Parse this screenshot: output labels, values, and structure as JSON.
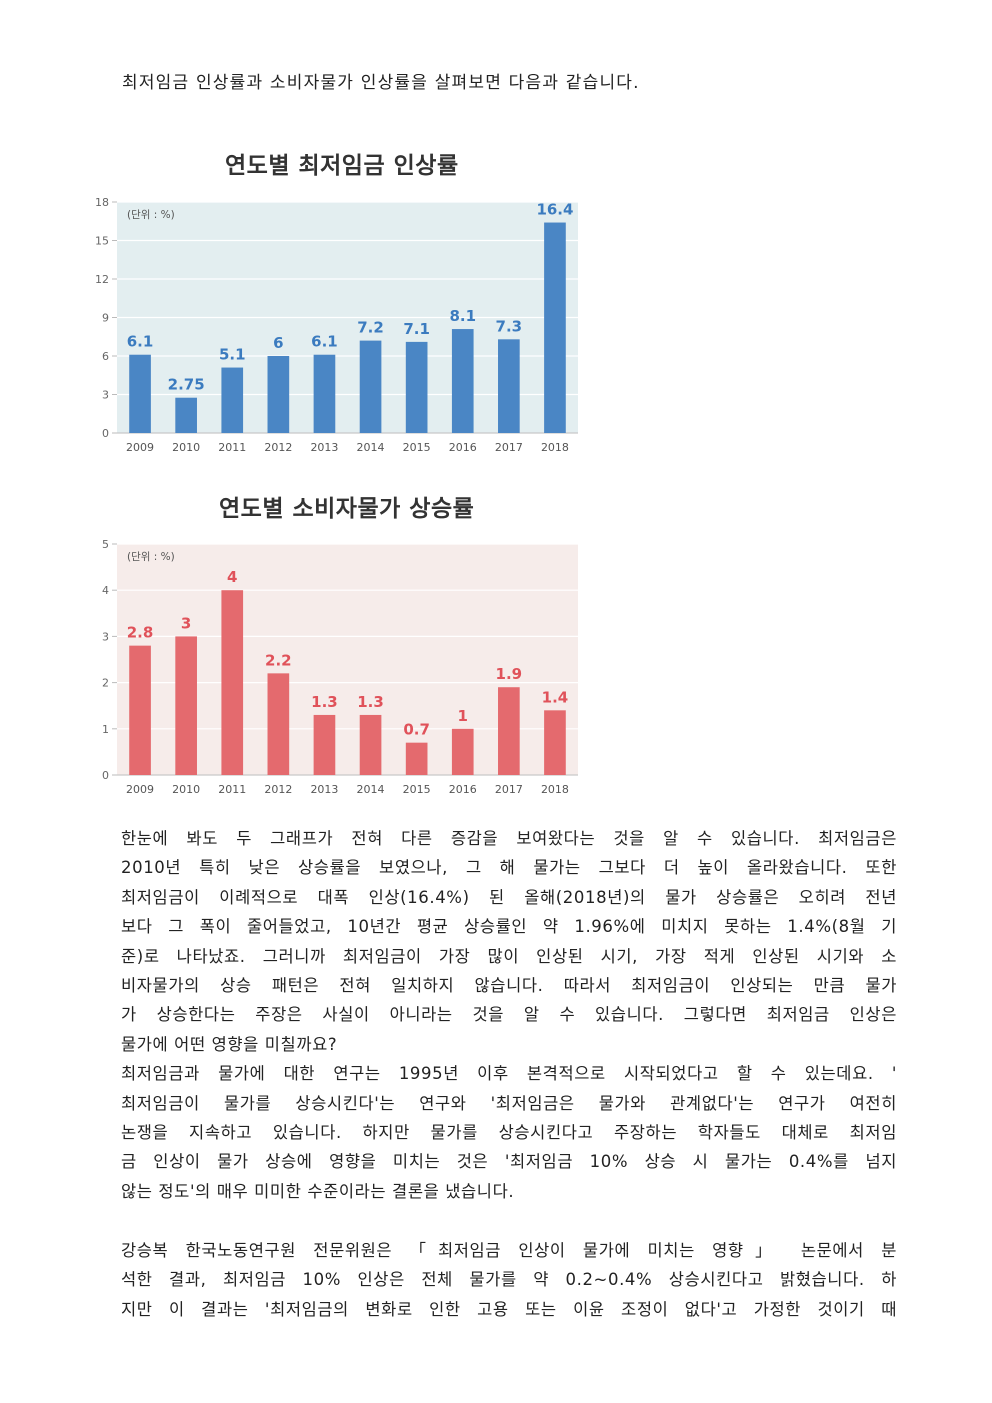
{
  "intro": "최저임금 인상률과 소비자물가 인상률을 살펴보면 다음과 같습니다.",
  "colors": {
    "wage_bar": "#4a86c5",
    "wage_bg": "#e3eef0",
    "wage_label": "#3b7bbf",
    "cpi_bar": "#e46a6e",
    "cpi_bg": "#f6ecea",
    "cpi_label": "#e0525a"
  },
  "chart_data": [
    {
      "type": "bar",
      "title": "연도별 최저임금 인상률",
      "unit_note": "(단위 : %)",
      "categories": [
        "2009",
        "2010",
        "2011",
        "2012",
        "2013",
        "2014",
        "2015",
        "2016",
        "2017",
        "2018"
      ],
      "values": [
        6.1,
        2.75,
        5.1,
        6,
        6.1,
        7.2,
        7.1,
        8.1,
        7.3,
        16.4
      ],
      "value_labels": [
        "6.1",
        "2.75",
        "5.1",
        "6",
        "6.1",
        "7.2",
        "7.1",
        "8.1",
        "7.3",
        "16.4"
      ],
      "yticks": [
        "0",
        "3",
        "6",
        "9",
        "12",
        "15",
        "18"
      ],
      "ylim": [
        0,
        18
      ],
      "grid": true
    },
    {
      "type": "bar",
      "title": "연도별 소비자물가 상승률",
      "unit_note": "(단위 : %)",
      "categories": [
        "2009",
        "2010",
        "2011",
        "2012",
        "2013",
        "2014",
        "2015",
        "2016",
        "2017",
        "2018"
      ],
      "values": [
        2.8,
        3,
        4,
        2.2,
        1.3,
        1.3,
        0.7,
        1,
        1.9,
        1.4
      ],
      "value_labels": [
        "2.8",
        "3",
        "4",
        "2.2",
        "1.3",
        "1.3",
        "0.7",
        "1",
        "1.9",
        "1.4"
      ],
      "yticks": [
        "0",
        "1",
        "2",
        "3",
        "4",
        "5"
      ],
      "ylim": [
        0,
        5
      ],
      "grid": true
    }
  ],
  "paragraph1": [
    "한눈에 봐도 두 그래프가 전혀 다른 증감을 보여왔다는 것을 알 수 있습니다. 최저임금은",
    "2010년 특히 낮은 상승률을 보였으나, 그 해 물가는 그보다 더 높이 올라왔습니다. 또한",
    "최저임금이 이례적으로 대폭 인상(16.4%) 된 올해(2018년)의 물가 상승률은 오히려 전년",
    "보다 그 폭이 줄어들었고, 10년간 평균 상승률인 약 1.96%에 미치지 못하는 1.4%(8월 기",
    "준)로 나타났죠. 그러니까 최저임금이 가장 많이 인상된 시기, 가장 적게 인상된 시기와 소",
    "비자물가의 상승 패턴은 전혀 일치하지 않습니다. 따라서 최저임금이 인상되는 만큼 물가",
    "가 상승한다는 주장은 사실이 아니라는 것을 알 수 있습니다. 그렇다면 최저임금 인상은",
    "물가에 어떤 영향을 미칠까요?",
    "최저임금과 물가에 대한 연구는 1995년 이후 본격적으로 시작되었다고 할 수 있는데요. '",
    "최저임금이 물가를 상승시킨다'는 연구와 '최저임금은 물가와 관계없다'는 연구가 여전히",
    "논쟁을 지속하고 있습니다. 하지만 물가를 상승시킨다고 주장하는 학자들도 대체로 최저임",
    "금 인상이 물가 상승에 영향을 미치는 것은 '최저임금 10% 상승 시 물가는 0.4%를 넘지",
    "않는 정도'의 매우 미미한 수준이라는 결론을 냈습니다."
  ],
  "paragraph2": [
    "강승복 한국노동연구원 전문위원은 「최저임금 인상이 물가에 미치는 영향」 논문에서 분",
    "석한 결과, 최저임금 10% 인상은 전체 물가를 약 0.2~0.4% 상승시킨다고 밝혔습니다. 하",
    "지만 이 결과는 '최저임금의 변화로 인한 고용 또는 이윤 조정이 없다'고 가정한 것이기 때"
  ]
}
